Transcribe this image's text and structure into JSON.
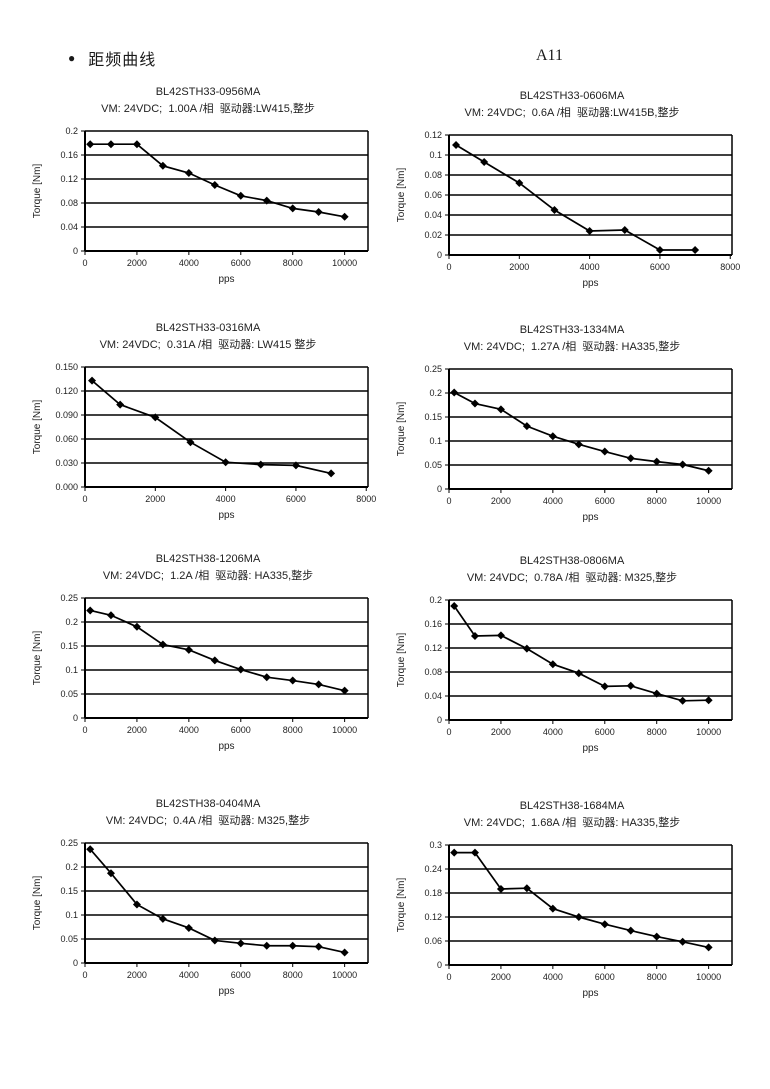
{
  "header": {
    "bullet": "●",
    "section_title": "距频曲线",
    "page_label": "A11"
  },
  "chart_data": [
    {
      "type": "line",
      "title": "BL42STH33-0956MA",
      "subtitle": "VM: 24VDC;  1.00A /相  驱动器:LW415,整步",
      "xlabel": "pps",
      "ylabel": "Torque   [Nm]",
      "x": [
        200,
        1000,
        2000,
        3000,
        4000,
        5000,
        6000,
        7000,
        8000,
        9000,
        10000
      ],
      "y": [
        0.178,
        0.178,
        0.178,
        0.142,
        0.13,
        0.11,
        0.092,
        0.084,
        0.071,
        0.065,
        0.057
      ],
      "xticks": [
        0,
        2000,
        4000,
        6000,
        8000,
        10000
      ],
      "xmax": 10900,
      "yticks": [
        "0",
        "0.04",
        "0.08",
        "0.12",
        "0.16",
        "0.2"
      ],
      "grid": "horizontal",
      "legend": "none"
    },
    {
      "type": "line",
      "title": "BL42STH33-0606MA",
      "subtitle": "VM: 24VDC;  0.6A /相  驱动器:LW415B,整步",
      "xlabel": "pps",
      "ylabel": "Torque   [Nm]",
      "x": [
        200,
        1000,
        2000,
        3000,
        4000,
        5000,
        6000,
        7000
      ],
      "y": [
        0.11,
        0.093,
        0.072,
        0.045,
        0.024,
        0.025,
        0.005,
        0.005
      ],
      "xticks": [
        0,
        2000,
        4000,
        6000,
        8000
      ],
      "xmax": 8050,
      "yticks": [
        "0",
        "0.02",
        "0.04",
        "0.06",
        "0.08",
        "0.1",
        "0.12"
      ],
      "grid": "horizontal",
      "legend": "none"
    },
    {
      "type": "line",
      "title": "BL42STH33-0316MA",
      "subtitle": "VM: 24VDC;  0.31A /相  驱动器: LW415 整步",
      "xlabel": "pps",
      "ylabel": "Torque   [Nm]",
      "x": [
        200,
        1000,
        2000,
        3000,
        4000,
        5000,
        6000,
        7000
      ],
      "y": [
        0.133,
        0.103,
        0.087,
        0.056,
        0.031,
        0.028,
        0.027,
        0.017
      ],
      "xticks": [
        0,
        2000,
        4000,
        6000,
        8000
      ],
      "xmax": 8050,
      "yticks": [
        "0.000",
        "0.030",
        "0.060",
        "0.090",
        "0.120",
        "0.150"
      ],
      "grid": "horizontal",
      "legend": "none"
    },
    {
      "type": "line",
      "title": "BL42STH33-1334MA",
      "subtitle": "VM: 24VDC;  1.27A /相  驱动器: HA335,整步",
      "xlabel": "pps",
      "ylabel": "Torque   [Nm]",
      "x": [
        200,
        1000,
        2000,
        3000,
        4000,
        5000,
        6000,
        7000,
        8000,
        9000,
        10000
      ],
      "y": [
        0.201,
        0.178,
        0.166,
        0.131,
        0.11,
        0.093,
        0.078,
        0.064,
        0.057,
        0.051,
        0.038
      ],
      "xticks": [
        0,
        2000,
        4000,
        6000,
        8000,
        10000
      ],
      "xmax": 10900,
      "yticks": [
        "0",
        "0.05",
        "0.1",
        "0.15",
        "0.2",
        "0.25"
      ],
      "grid": "horizontal",
      "legend": "none"
    },
    {
      "type": "line",
      "title": "BL42STH38-1206MA",
      "subtitle": "VM: 24VDC;  1.2A /相  驱动器: HA335,整步",
      "xlabel": "pps",
      "ylabel": "Torque   [Nm]",
      "x": [
        200,
        1000,
        2000,
        3000,
        4000,
        5000,
        6000,
        7000,
        8000,
        9000,
        10000
      ],
      "y": [
        0.224,
        0.214,
        0.19,
        0.153,
        0.142,
        0.12,
        0.101,
        0.085,
        0.078,
        0.07,
        0.057
      ],
      "xticks": [
        0,
        2000,
        4000,
        6000,
        8000,
        10000
      ],
      "xmax": 10900,
      "yticks": [
        "0",
        "0.05",
        "0.1",
        "0.15",
        "0.2",
        "0.25"
      ],
      "grid": "horizontal",
      "legend": "none"
    },
    {
      "type": "line",
      "title": "BL42STH38-0806MA",
      "subtitle": "VM: 24VDC;  0.78A /相  驱动器: M325,整步",
      "xlabel": "pps",
      "ylabel": "Torque   [Nm]",
      "x": [
        200,
        1000,
        2000,
        3000,
        4000,
        5000,
        6000,
        7000,
        8000,
        9000,
        10000
      ],
      "y": [
        0.19,
        0.14,
        0.141,
        0.119,
        0.093,
        0.078,
        0.056,
        0.057,
        0.044,
        0.032,
        0.033
      ],
      "xticks": [
        0,
        2000,
        4000,
        6000,
        8000,
        10000
      ],
      "xmax": 10900,
      "yticks": [
        "0",
        "0.04",
        "0.08",
        "0.12",
        "0.16",
        "0.2"
      ],
      "grid": "horizontal",
      "legend": "none"
    },
    {
      "type": "line",
      "title": "BL42STH38-0404MA",
      "subtitle": "VM: 24VDC;  0.4A /相  驱动器: M325,整步",
      "xlabel": "pps",
      "ylabel": "Torque   [Nm]",
      "x": [
        200,
        1000,
        2000,
        3000,
        4000,
        5000,
        6000,
        7000,
        8000,
        9000,
        10000
      ],
      "y": [
        0.237,
        0.187,
        0.122,
        0.092,
        0.073,
        0.047,
        0.041,
        0.036,
        0.036,
        0.034,
        0.022
      ],
      "xticks": [
        0,
        2000,
        4000,
        6000,
        8000,
        10000
      ],
      "xmax": 10900,
      "yticks": [
        "0",
        "0.05",
        "0.1",
        "0.15",
        "0.2",
        "0.25"
      ],
      "grid": "horizontal",
      "legend": "none"
    },
    {
      "type": "line",
      "title": "BL42STH38-1684MA",
      "subtitle": "VM: 24VDC;  1.68A /相  驱动器: HA335,整步",
      "xlabel": "pps",
      "ylabel": "Torque   [Nm]",
      "x": [
        200,
        1000,
        2000,
        3000,
        4000,
        5000,
        6000,
        7000,
        8000,
        9000,
        10000
      ],
      "y": [
        0.281,
        0.281,
        0.19,
        0.192,
        0.141,
        0.12,
        0.102,
        0.086,
        0.071,
        0.058,
        0.044
      ],
      "xticks": [
        0,
        2000,
        4000,
        6000,
        8000,
        10000
      ],
      "xmax": 10900,
      "yticks": [
        "0",
        "0.06",
        "0.12",
        "0.18",
        "0.24",
        "0.3"
      ],
      "grid": "horizontal",
      "legend": "none"
    }
  ]
}
